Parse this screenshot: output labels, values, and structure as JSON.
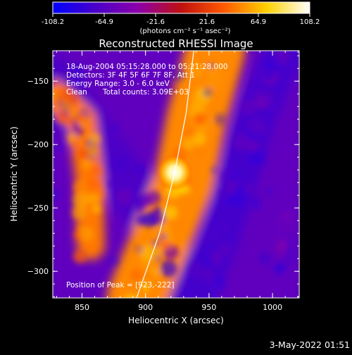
{
  "colorbar": {
    "ticks": [
      "-108.2",
      "-64.9",
      "-21.6",
      "21.6",
      "64.9",
      "108.2"
    ],
    "unit_label": "(photons cm⁻² s⁻¹ asec⁻²)",
    "min": -108.2,
    "max": 108.2
  },
  "annotations": {
    "time_range": "18-Aug-2004 05:15:28.000 to 05:21:28.000",
    "detectors": "Detectors: 3F 4F 5F 6F 7F 8F, Att 1",
    "energy": "Energy Range: 3.0 - 6.0 keV",
    "algorithm": "Clean",
    "counts": "Total counts: 3.09E+03",
    "peak": "Position of Peak = [923,-222]"
  },
  "footer": {
    "date": "3-May-2022 01:51"
  },
  "chart_data": {
    "type": "heatmap",
    "title": "Reconstructed RHESSI Image",
    "xlabel": "Heliocentric X (arcsec)",
    "ylabel": "Heliocentric Y (arcsec)",
    "xlim": [
      827,
      1021
    ],
    "ylim": [
      -321,
      -126
    ],
    "xticks": [
      850,
      900,
      950,
      1000
    ],
    "yticks": [
      -150,
      -200,
      -250,
      -300
    ],
    "xtick_labels": [
      "850",
      "900",
      "950",
      "1000"
    ],
    "ytick_labels": [
      "−150",
      "−200",
      "−250",
      "−300"
    ],
    "peak_position": [
      923,
      -222
    ],
    "peak_value": 108.2,
    "colormap": [
      "#0000ff",
      "#4a00c8",
      "#8c00aa",
      "#c01010",
      "#ff5a00",
      "#ffd200",
      "#ffffff"
    ],
    "limb": [
      [
        938,
        -126
      ],
      [
        932,
        -175
      ],
      [
        923,
        -222
      ],
      [
        911,
        -270
      ],
      [
        893,
        -321
      ]
    ],
    "bands": [
      {
        "points": [
          [
            827,
            -150
          ],
          [
            862,
            -200
          ],
          [
            900,
            -250
          ],
          [
            935,
            -321
          ]
        ],
        "value": -70
      },
      {
        "points": [
          [
            955,
            -126
          ],
          [
            940,
            -180
          ],
          [
            930,
            -230
          ],
          [
            910,
            -280
          ],
          [
            893,
            -321
          ]
        ],
        "value": 50
      },
      {
        "points": [
          [
            827,
            -160
          ],
          [
            850,
            -180
          ],
          [
            856,
            -230
          ],
          [
            857,
            -280
          ]
        ],
        "value": 45
      },
      {
        "points": [
          [
            1010,
            -126
          ],
          [
            990,
            -170
          ],
          [
            975,
            -220
          ],
          [
            960,
            -270
          ],
          [
            940,
            -321
          ]
        ],
        "value": -75
      },
      {
        "points": [
          [
            1000,
            -300
          ],
          [
            1021,
            -260
          ]
        ],
        "value": -60
      }
    ]
  }
}
